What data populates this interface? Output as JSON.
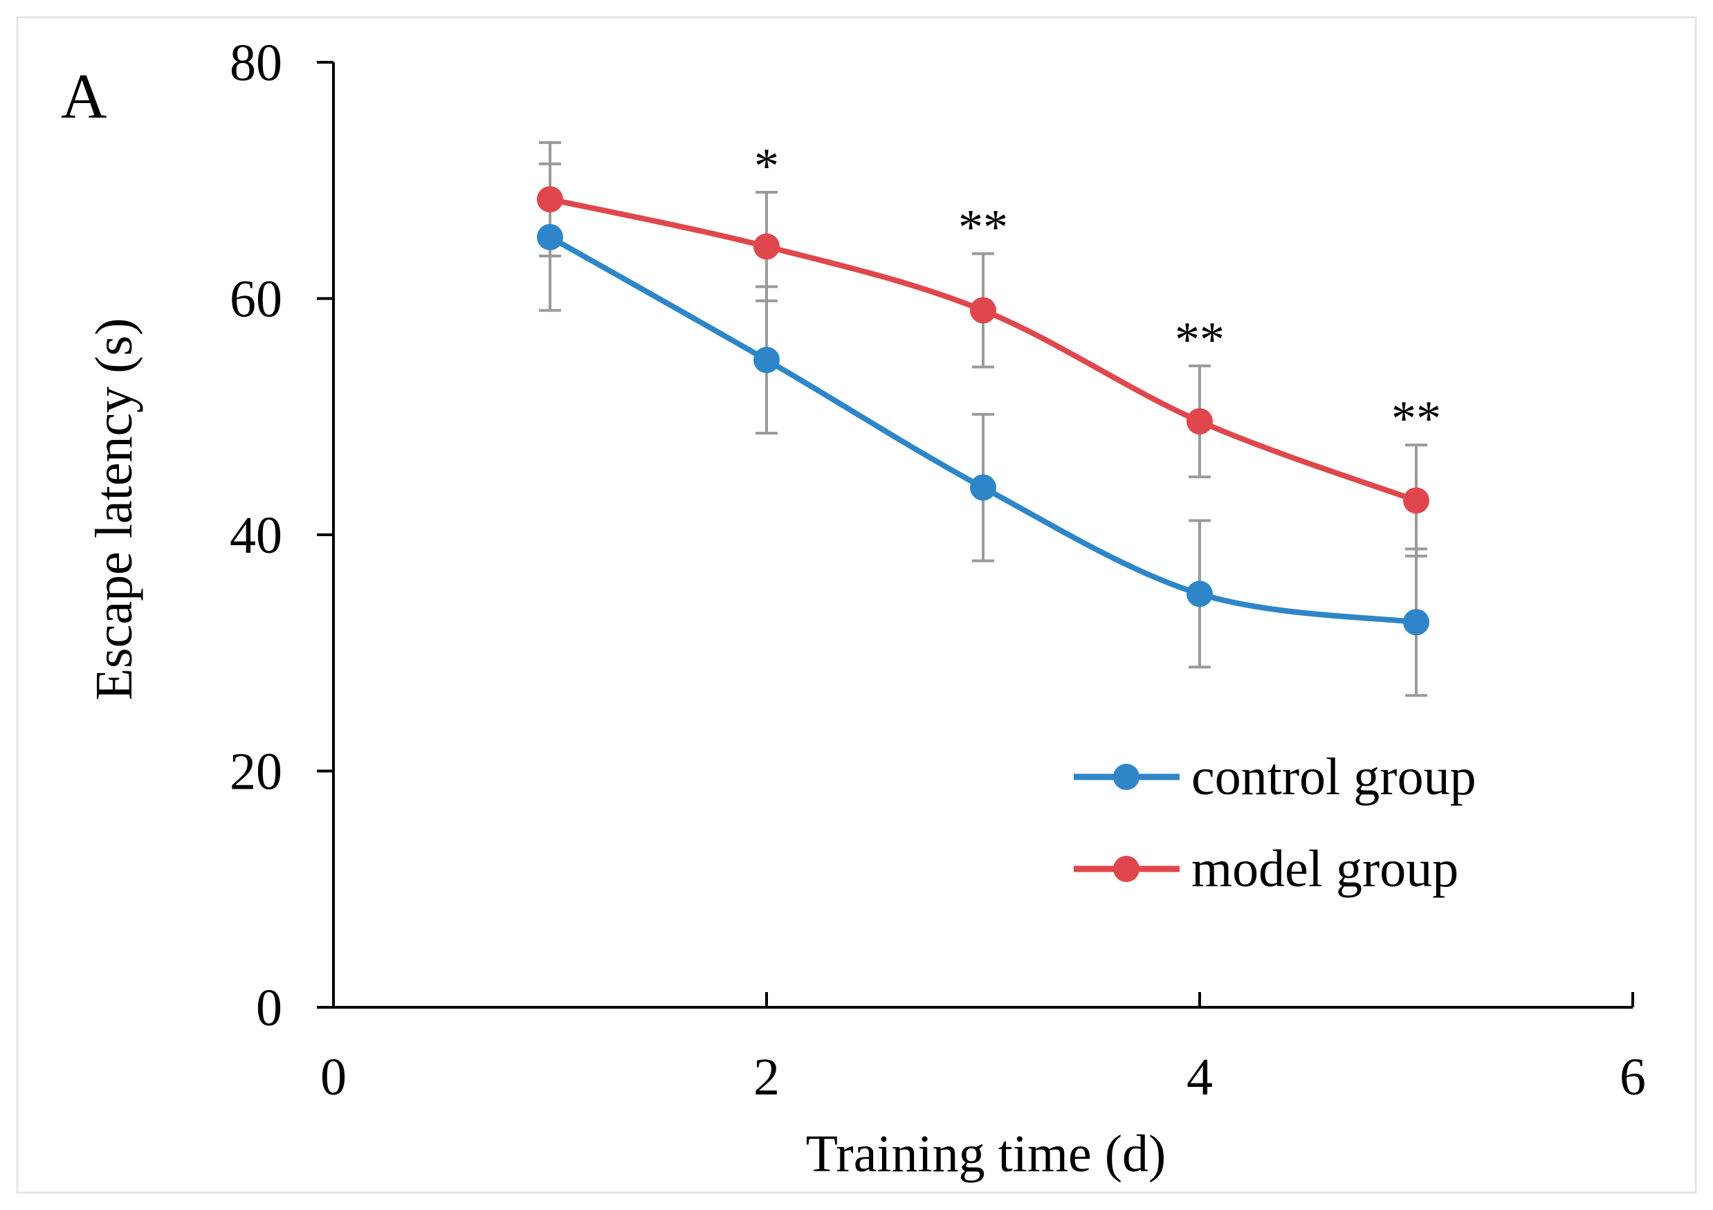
{
  "panel_label": "A",
  "chart_data": {
    "type": "line",
    "title": "",
    "xlabel": "Training time (d)",
    "ylabel": "Escape latency (s)",
    "xlim": [
      0,
      6
    ],
    "ylim": [
      0,
      80
    ],
    "xticks": [
      0,
      2,
      4,
      6
    ],
    "yticks": [
      0,
      20,
      40,
      60,
      80
    ],
    "xtick_labels": [
      "0",
      "2",
      "4",
      "6"
    ],
    "ytick_labels": [
      "0",
      "20",
      "40",
      "60",
      "80"
    ],
    "grid": false,
    "legend_position": "lower-right",
    "x": [
      1,
      2,
      3,
      4,
      5
    ],
    "series": [
      {
        "name": "control group",
        "color": "#2E86C8",
        "values": [
          65.2,
          54.8,
          44.0,
          35.0,
          32.6
        ],
        "error": [
          6.2,
          6.2,
          6.2,
          6.2,
          6.2
        ]
      },
      {
        "name": "model group",
        "color": "#E0474C",
        "values": [
          68.4,
          64.4,
          59.0,
          49.6,
          42.9
        ],
        "error": [
          4.8,
          4.6,
          4.8,
          4.7,
          4.7
        ]
      }
    ],
    "annotations": [
      {
        "x": 2,
        "text": "*"
      },
      {
        "x": 3,
        "text": "**"
      },
      {
        "x": 4,
        "text": "**"
      },
      {
        "x": 5,
        "text": "**"
      }
    ],
    "errorbar_color": "#9a9a9a"
  }
}
